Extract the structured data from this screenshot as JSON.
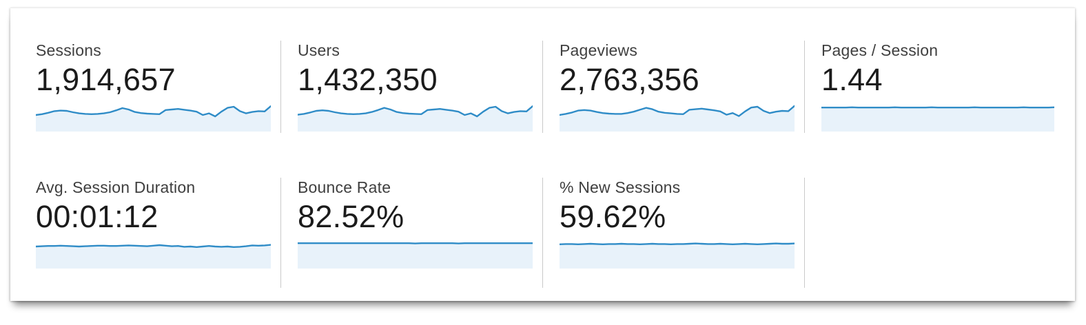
{
  "app": {
    "name": "Analytics Audience Overview metrics",
    "colors": {
      "spark_line": "#2f8cc7",
      "spark_fill": "#e8f2fa",
      "divider": "#c9c9c9",
      "label_text": "#3f3f3f",
      "value_text": "#1b1b1b",
      "card_background": "#ffffff"
    }
  },
  "metrics": [
    {
      "id": "sessions",
      "label": "Sessions",
      "value": "1,914,657",
      "sparkline": [
        0.6,
        0.63,
        0.68,
        0.74,
        0.76,
        0.75,
        0.7,
        0.66,
        0.64,
        0.63,
        0.64,
        0.66,
        0.7,
        0.77,
        0.85,
        0.8,
        0.71,
        0.67,
        0.65,
        0.64,
        0.63,
        0.78,
        0.8,
        0.82,
        0.79,
        0.76,
        0.72,
        0.6,
        0.66,
        0.55,
        0.72,
        0.86,
        0.9,
        0.74,
        0.66,
        0.71,
        0.74,
        0.73,
        0.92
      ]
    },
    {
      "id": "users",
      "label": "Users",
      "value": "1,432,350",
      "sparkline": [
        0.61,
        0.64,
        0.69,
        0.75,
        0.77,
        0.75,
        0.7,
        0.66,
        0.64,
        0.63,
        0.64,
        0.66,
        0.71,
        0.78,
        0.86,
        0.8,
        0.71,
        0.67,
        0.65,
        0.64,
        0.63,
        0.78,
        0.8,
        0.82,
        0.79,
        0.76,
        0.72,
        0.6,
        0.66,
        0.55,
        0.72,
        0.86,
        0.9,
        0.74,
        0.66,
        0.71,
        0.74,
        0.73,
        0.92
      ]
    },
    {
      "id": "pageviews",
      "label": "Pageviews",
      "value": "2,763,356",
      "sparkline": [
        0.6,
        0.64,
        0.69,
        0.76,
        0.78,
        0.76,
        0.71,
        0.67,
        0.65,
        0.64,
        0.64,
        0.67,
        0.72,
        0.79,
        0.86,
        0.81,
        0.72,
        0.68,
        0.66,
        0.64,
        0.63,
        0.79,
        0.81,
        0.83,
        0.8,
        0.77,
        0.73,
        0.61,
        0.67,
        0.56,
        0.73,
        0.87,
        0.9,
        0.75,
        0.67,
        0.72,
        0.75,
        0.74,
        0.93
      ]
    },
    {
      "id": "pages-per-session",
      "label": "Pages / Session",
      "value": "1.44",
      "sparkline": [
        0.87,
        0.87,
        0.87,
        0.87,
        0.87,
        0.88,
        0.87,
        0.87,
        0.87,
        0.87,
        0.87,
        0.87,
        0.88,
        0.87,
        0.87,
        0.87,
        0.87,
        0.87,
        0.88,
        0.87,
        0.87,
        0.87,
        0.87,
        0.87,
        0.87,
        0.88,
        0.87,
        0.87,
        0.87,
        0.87,
        0.87,
        0.87,
        0.87,
        0.88,
        0.87,
        0.87,
        0.87,
        0.87,
        0.88
      ]
    },
    {
      "id": "avg-session-duration",
      "label": "Avg. Session Duration",
      "value": "00:01:12",
      "sparkline": [
        0.8,
        0.81,
        0.82,
        0.82,
        0.83,
        0.82,
        0.81,
        0.8,
        0.81,
        0.82,
        0.83,
        0.83,
        0.82,
        0.82,
        0.83,
        0.84,
        0.83,
        0.82,
        0.81,
        0.83,
        0.85,
        0.83,
        0.81,
        0.82,
        0.79,
        0.8,
        0.78,
        0.8,
        0.82,
        0.8,
        0.79,
        0.8,
        0.78,
        0.79,
        0.81,
        0.84,
        0.83,
        0.84,
        0.86
      ]
    },
    {
      "id": "bounce-rate",
      "label": "Bounce Rate",
      "value": "82.52%",
      "sparkline": [
        0.92,
        0.92,
        0.92,
        0.92,
        0.92,
        0.92,
        0.92,
        0.92,
        0.92,
        0.92,
        0.92,
        0.92,
        0.92,
        0.92,
        0.92,
        0.92,
        0.92,
        0.92,
        0.92,
        0.91,
        0.92,
        0.92,
        0.92,
        0.92,
        0.92,
        0.92,
        0.91,
        0.92,
        0.92,
        0.92,
        0.92,
        0.92,
        0.92,
        0.92,
        0.92,
        0.92,
        0.92,
        0.92,
        0.92
      ]
    },
    {
      "id": "percent-new-sessions",
      "label": "% New Sessions",
      "value": "59.62%",
      "sparkline": [
        0.88,
        0.89,
        0.89,
        0.88,
        0.89,
        0.9,
        0.89,
        0.88,
        0.89,
        0.89,
        0.9,
        0.89,
        0.89,
        0.88,
        0.89,
        0.9,
        0.89,
        0.89,
        0.88,
        0.89,
        0.89,
        0.9,
        0.91,
        0.9,
        0.89,
        0.89,
        0.9,
        0.89,
        0.88,
        0.89,
        0.9,
        0.89,
        0.88,
        0.89,
        0.9,
        0.91,
        0.9,
        0.9,
        0.91
      ]
    }
  ]
}
